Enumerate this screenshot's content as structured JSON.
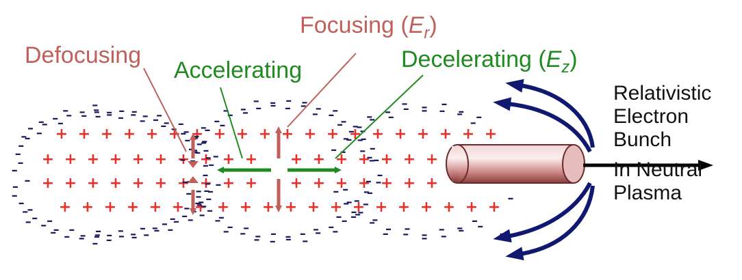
{
  "labels": {
    "defocusing": "Defocusing",
    "focusing": {
      "text": "Focusing (",
      "symbol": "E",
      "sub": "r",
      "close": ")"
    },
    "accelerating": "Accelerating",
    "decelerating": {
      "text": "Decelerating (",
      "symbol": "E",
      "sub": "z",
      "close": ")"
    },
    "bunch_lines": [
      "Relativistic",
      "Electron",
      "Bunch",
      "In Neutral",
      "Plasma"
    ]
  },
  "symbols": {
    "plus": "+",
    "minus": "–"
  },
  "colors": {
    "ion_plus": "#e8302a",
    "electron_minus": "#1a1a5e",
    "field_red": "#c0605c",
    "field_green": "#1f8a1f",
    "bunch_body": "#d89a9a",
    "bunch_edge": "#6b2a2a",
    "flow_arrow": "#101870",
    "text_black": "#111111"
  }
}
